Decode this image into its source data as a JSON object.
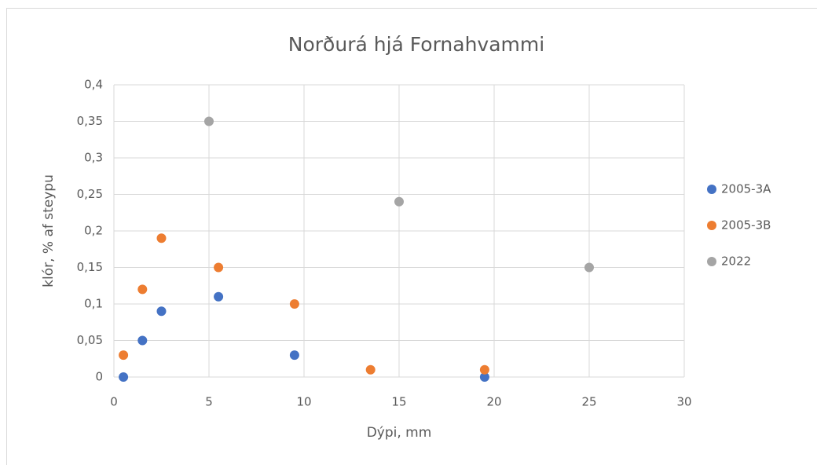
{
  "chart_data": {
    "type": "scatter",
    "title": "Norðurá hjá Fornahvammi",
    "xlabel": "Dýpi, mm",
    "ylabel": "klór, % af steypu",
    "xlim": [
      0,
      30
    ],
    "xticks": [
      0,
      5,
      10,
      15,
      20,
      25,
      30
    ],
    "ylim": [
      0,
      0.4
    ],
    "yticks": [
      0,
      {
        "value": 0.05,
        "label": "0,05"
      },
      {
        "value": 0.1,
        "label": "0,1"
      },
      {
        "value": 0.15,
        "label": "0,15"
      },
      {
        "value": 0.2,
        "label": "0,2"
      },
      {
        "value": 0.25,
        "label": "0,25"
      },
      {
        "value": 0.3,
        "label": "0,3"
      },
      {
        "value": 0.35,
        "label": "0,35"
      },
      {
        "value": 0.4,
        "label": "0,4"
      }
    ],
    "grid": true,
    "legend": "right",
    "series": [
      {
        "name": "2005-3A",
        "color": "#4472c4",
        "x": [
          0.5,
          1.5,
          2.5,
          5.5,
          9.5,
          19.5
        ],
        "values": [
          0,
          0.05,
          0.09,
          0.11,
          0.03,
          0
        ]
      },
      {
        "name": "2005-3B",
        "color": "#ed7d31",
        "x": [
          0.5,
          1.5,
          2.5,
          5.5,
          9.5,
          13.5,
          19.5
        ],
        "values": [
          0.03,
          0.12,
          0.19,
          0.15,
          0.1,
          0.01,
          0.01
        ]
      },
      {
        "name": "2022",
        "color": "#a5a5a5",
        "x": [
          5,
          15,
          25
        ],
        "values": [
          0.35,
          0.24,
          0.15
        ]
      }
    ]
  }
}
